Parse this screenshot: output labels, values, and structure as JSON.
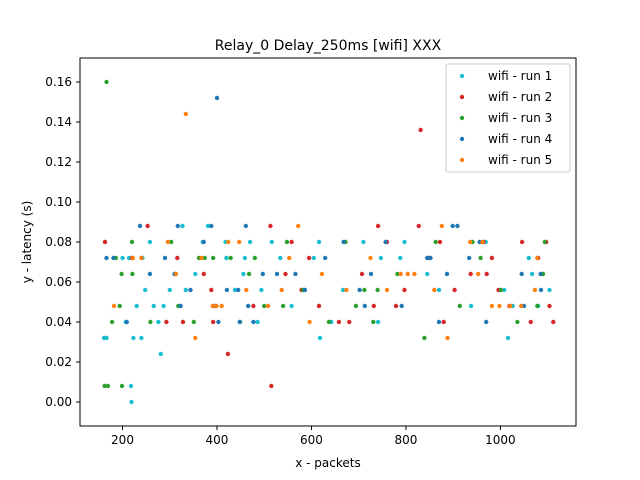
{
  "chart_data": {
    "type": "scatter",
    "title": "Relay_0 Delay_250ms [wifi] XXX",
    "xlabel": "x - packets",
    "ylabel": "y - latency (s)",
    "xlim": [
      110,
      1160
    ],
    "ylim": [
      -0.012,
      0.172
    ],
    "xticks": [
      200,
      400,
      600,
      800,
      1000
    ],
    "yticks": [
      0.0,
      0.02,
      0.04,
      0.06,
      0.08,
      0.1,
      0.12,
      0.14,
      0.16
    ],
    "ytick_labels": [
      "0.00",
      "0.02",
      "0.04",
      "0.06",
      "0.08",
      "0.10",
      "0.12",
      "0.14",
      "0.16"
    ],
    "grid": false,
    "legend_position": "top-right",
    "series": [
      {
        "name": "wifi - run 1",
        "color": "#17becf",
        "points": [
          [
            161,
            0.032
          ],
          [
            166,
            0.032
          ],
          [
            200,
            0.072
          ],
          [
            207,
            0.04
          ],
          [
            214,
            0.072
          ],
          [
            218,
            0.008
          ],
          [
            219,
            0.0
          ],
          [
            223,
            0.032
          ],
          [
            230,
            0.048
          ],
          [
            240,
            0.032
          ],
          [
            242,
            0.072
          ],
          [
            248,
            0.056
          ],
          [
            258,
            0.08
          ],
          [
            266,
            0.048
          ],
          [
            276,
            0.04
          ],
          [
            281,
            0.024
          ],
          [
            287,
            0.048
          ],
          [
            300,
            0.056
          ],
          [
            313,
            0.064
          ],
          [
            327,
            0.088
          ],
          [
            334,
            0.056
          ],
          [
            354,
            0.064
          ],
          [
            370,
            0.08
          ],
          [
            381,
            0.088
          ],
          [
            418,
            0.08
          ],
          [
            420,
            0.072
          ],
          [
            438,
            0.056
          ],
          [
            456,
            0.064
          ],
          [
            459,
            0.072
          ],
          [
            470,
            0.08
          ],
          [
            486,
            0.04
          ],
          [
            494,
            0.056
          ],
          [
            516,
            0.08
          ],
          [
            534,
            0.072
          ],
          [
            558,
            0.048
          ],
          [
            605,
            0.072
          ],
          [
            616,
            0.08
          ],
          [
            618,
            0.032
          ],
          [
            642,
            0.04
          ],
          [
            667,
            0.056
          ],
          [
            710,
            0.08
          ],
          [
            741,
            0.04
          ],
          [
            747,
            0.072
          ],
          [
            788,
            0.072
          ],
          [
            797,
            0.08
          ],
          [
            845,
            0.064
          ],
          [
            870,
            0.056
          ],
          [
            938,
            0.048
          ],
          [
            969,
            0.08
          ],
          [
            1008,
            0.056
          ],
          [
            1016,
            0.032
          ],
          [
            1026,
            0.048
          ],
          [
            1060,
            0.072
          ],
          [
            1067,
            0.064
          ],
          [
            1080,
            0.048
          ],
          [
            1090,
            0.064
          ],
          [
            1104,
            0.056
          ]
        ]
      },
      {
        "name": "wifi - run 2",
        "color": "#d62728",
        "points": [
          [
            163,
            0.08
          ],
          [
            220,
            0.072
          ],
          [
            253,
            0.088
          ],
          [
            293,
            0.04
          ],
          [
            316,
            0.072
          ],
          [
            328,
            0.04
          ],
          [
            372,
            0.064
          ],
          [
            388,
            0.056
          ],
          [
            392,
            0.04
          ],
          [
            423,
            0.024
          ],
          [
            477,
            0.048
          ],
          [
            513,
            0.088
          ],
          [
            515,
            0.008
          ],
          [
            545,
            0.064
          ],
          [
            558,
            0.08
          ],
          [
            579,
            0.056
          ],
          [
            595,
            0.072
          ],
          [
            616,
            0.048
          ],
          [
            658,
            0.04
          ],
          [
            680,
            0.04
          ],
          [
            707,
            0.064
          ],
          [
            732,
            0.048
          ],
          [
            741,
            0.088
          ],
          [
            760,
            0.08
          ],
          [
            779,
            0.048
          ],
          [
            797,
            0.056
          ],
          [
            827,
            0.088
          ],
          [
            831,
            0.136
          ],
          [
            849,
            0.072
          ],
          [
            872,
            0.08
          ],
          [
            880,
            0.04
          ],
          [
            903,
            0.056
          ],
          [
            937,
            0.064
          ],
          [
            964,
            0.08
          ],
          [
            971,
            0.064
          ],
          [
            982,
            0.072
          ],
          [
            996,
            0.056
          ],
          [
            1019,
            0.048
          ],
          [
            1046,
            0.08
          ],
          [
            1064,
            0.04
          ],
          [
            1080,
            0.072
          ],
          [
            1097,
            0.08
          ],
          [
            1104,
            0.048
          ],
          [
            1112,
            0.04
          ]
        ]
      },
      {
        "name": "wifi - run 3",
        "color": "#2ca02c",
        "points": [
          [
            162,
            0.008
          ],
          [
            166,
            0.16
          ],
          [
            169,
            0.008
          ],
          [
            178,
            0.04
          ],
          [
            186,
            0.072
          ],
          [
            194,
            0.048
          ],
          [
            198,
            0.064
          ],
          [
            199,
            0.008
          ],
          [
            220,
            0.08
          ],
          [
            221,
            0.064
          ],
          [
            259,
            0.04
          ],
          [
            303,
            0.08
          ],
          [
            318,
            0.048
          ],
          [
            351,
            0.04
          ],
          [
            362,
            0.072
          ],
          [
            374,
            0.072
          ],
          [
            392,
            0.072
          ],
          [
            429,
            0.072
          ],
          [
            449,
            0.04
          ],
          [
            468,
            0.064
          ],
          [
            480,
            0.072
          ],
          [
            500,
            0.048
          ],
          [
            540,
            0.048
          ],
          [
            548,
            0.08
          ],
          [
            582,
            0.056
          ],
          [
            637,
            0.04
          ],
          [
            672,
            0.08
          ],
          [
            694,
            0.048
          ],
          [
            712,
            0.056
          ],
          [
            731,
            0.04
          ],
          [
            740,
            0.056
          ],
          [
            782,
            0.064
          ],
          [
            839,
            0.032
          ],
          [
            863,
            0.08
          ],
          [
            914,
            0.048
          ],
          [
            941,
            0.08
          ],
          [
            958,
            0.072
          ],
          [
            1001,
            0.056
          ],
          [
            1036,
            0.04
          ],
          [
            1078,
            0.048
          ],
          [
            1090,
            0.064
          ],
          [
            1094,
            0.08
          ]
        ]
      },
      {
        "name": "wifi - run 4",
        "color": "#1f77b4",
        "points": [
          [
            166,
            0.072
          ],
          [
            181,
            0.072
          ],
          [
            209,
            0.04
          ],
          [
            237,
            0.088
          ],
          [
            258,
            0.064
          ],
          [
            290,
            0.072
          ],
          [
            310,
            0.064
          ],
          [
            317,
            0.088
          ],
          [
            323,
            0.048
          ],
          [
            344,
            0.056
          ],
          [
            372,
            0.08
          ],
          [
            388,
            0.088
          ],
          [
            396,
            0.048
          ],
          [
            400,
            0.152
          ],
          [
            403,
            0.04
          ],
          [
            421,
            0.056
          ],
          [
            445,
            0.056
          ],
          [
            448,
            0.04
          ],
          [
            461,
            0.088
          ],
          [
            466,
            0.048
          ],
          [
            477,
            0.04
          ],
          [
            497,
            0.064
          ],
          [
            527,
            0.064
          ],
          [
            566,
            0.064
          ],
          [
            586,
            0.056
          ],
          [
            629,
            0.072
          ],
          [
            668,
            0.08
          ],
          [
            702,
            0.056
          ],
          [
            713,
            0.048
          ],
          [
            726,
            0.064
          ],
          [
            757,
            0.08
          ],
          [
            791,
            0.048
          ],
          [
            845,
            0.072
          ],
          [
            852,
            0.072
          ],
          [
            870,
            0.04
          ],
          [
            887,
            0.064
          ],
          [
            899,
            0.088
          ],
          [
            909,
            0.088
          ],
          [
            934,
            0.072
          ],
          [
            956,
            0.08
          ],
          [
            970,
            0.04
          ],
          [
            1045,
            0.064
          ],
          [
            1050,
            0.048
          ],
          [
            1085,
            0.064
          ],
          [
            1086,
            0.056
          ]
        ]
      },
      {
        "name": "wifi - run 5",
        "color": "#ff7f0e",
        "points": [
          [
            182,
            0.048
          ],
          [
            222,
            0.072
          ],
          [
            240,
            0.072
          ],
          [
            296,
            0.08
          ],
          [
            313,
            0.064
          ],
          [
            334,
            0.144
          ],
          [
            354,
            0.032
          ],
          [
            367,
            0.072
          ],
          [
            391,
            0.048
          ],
          [
            399,
            0.048
          ],
          [
            410,
            0.048
          ],
          [
            424,
            0.08
          ],
          [
            447,
            0.08
          ],
          [
            462,
            0.056
          ],
          [
            508,
            0.048
          ],
          [
            537,
            0.056
          ],
          [
            553,
            0.072
          ],
          [
            572,
            0.088
          ],
          [
            596,
            0.04
          ],
          [
            622,
            0.064
          ],
          [
            674,
            0.056
          ],
          [
            725,
            0.072
          ],
          [
            760,
            0.056
          ],
          [
            789,
            0.064
          ],
          [
            804,
            0.064
          ],
          [
            818,
            0.064
          ],
          [
            860,
            0.056
          ],
          [
            876,
            0.088
          ],
          [
            888,
            0.032
          ],
          [
            936,
            0.08
          ],
          [
            953,
            0.064
          ],
          [
            962,
            0.08
          ],
          [
            982,
            0.048
          ],
          [
            998,
            0.048
          ],
          [
            1021,
            0.048
          ],
          [
            1044,
            0.048
          ],
          [
            1073,
            0.056
          ],
          [
            1078,
            0.072
          ]
        ]
      }
    ]
  }
}
